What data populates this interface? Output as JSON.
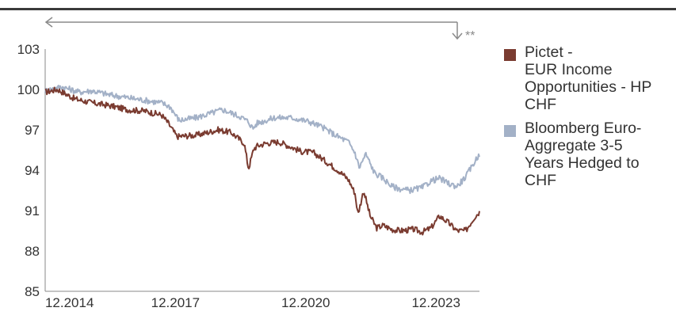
{
  "chart_data": {
    "type": "line",
    "title": "",
    "xlabel": "",
    "ylabel": "",
    "x_tick_labels": [
      "12.2014",
      "12.2017",
      "12.2020",
      "12.2023"
    ],
    "x_range": [
      2014.917,
      2024.917
    ],
    "y_ticks": [
      85,
      88,
      91,
      94,
      97,
      100,
      103
    ],
    "ylim": [
      85,
      103
    ],
    "grid": false,
    "legend_position": "right",
    "annotation": "**",
    "series": [
      {
        "name": "Pictet - EUR Income Opportunities - HP CHF",
        "color": "#7a3b30",
        "x": [
          2014.917,
          2015.2,
          2015.6,
          2016.0,
          2016.4,
          2016.8,
          2017.2,
          2017.6,
          2017.75,
          2017.95,
          2018.4,
          2018.9,
          2019.2,
          2019.5,
          2019.6,
          2019.72,
          2019.8,
          2020.0,
          2020.3,
          2020.6,
          2020.8,
          2021.1,
          2021.4,
          2021.7,
          2021.9,
          2022.05,
          2022.12,
          2022.25,
          2022.4,
          2022.55,
          2022.7,
          2022.9,
          2023.1,
          2023.4,
          2023.6,
          2023.8,
          2024.0,
          2024.2,
          2024.4,
          2024.6,
          2024.8,
          2024.917
        ],
        "y": [
          99.8,
          100.0,
          99.3,
          99.0,
          98.8,
          98.5,
          98.4,
          98.1,
          97.5,
          96.5,
          96.6,
          97.0,
          96.8,
          96.0,
          94.1,
          95.6,
          95.8,
          96.0,
          96.1,
          95.7,
          95.4,
          95.3,
          94.6,
          93.9,
          93.3,
          92.3,
          90.7,
          92.5,
          90.6,
          89.7,
          89.9,
          89.6,
          89.5,
          89.6,
          89.4,
          89.7,
          90.6,
          90.1,
          89.5,
          89.5,
          90.5,
          90.9
        ]
      },
      {
        "name": "Bloomberg Euro-Aggregate 3-5 Years Hedged to CHF",
        "color": "#a3b1c7",
        "x": [
          2014.917,
          2015.3,
          2015.7,
          2016.0,
          2016.4,
          2016.8,
          2017.2,
          2017.6,
          2017.8,
          2018.0,
          2018.4,
          2018.8,
          2019.0,
          2019.4,
          2019.6,
          2019.7,
          2019.8,
          2020.2,
          2020.6,
          2021.0,
          2021.3,
          2021.6,
          2021.9,
          2022.05,
          2022.15,
          2022.3,
          2022.5,
          2022.7,
          2022.9,
          2023.1,
          2023.3,
          2023.6,
          2023.8,
          2024.0,
          2024.2,
          2024.4,
          2024.6,
          2024.8,
          2024.917
        ],
        "y": [
          99.9,
          100.2,
          99.8,
          99.9,
          99.6,
          99.4,
          99.2,
          99.0,
          98.7,
          97.7,
          97.9,
          98.3,
          98.5,
          98.0,
          97.6,
          97.1,
          97.5,
          97.9,
          97.9,
          97.6,
          97.2,
          96.6,
          96.1,
          95.3,
          94.2,
          95.2,
          93.8,
          93.4,
          92.8,
          92.6,
          92.5,
          92.7,
          93.2,
          93.4,
          93.0,
          92.8,
          93.5,
          94.6,
          95.2
        ]
      }
    ]
  }
}
